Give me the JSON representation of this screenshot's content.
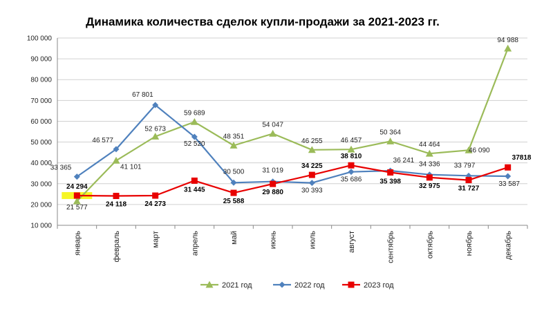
{
  "chart_data": {
    "type": "line",
    "title": "Динамика количества сделок купли-продажи за 2021-2023 гг.",
    "categories": [
      "январь",
      "февраль",
      "март",
      "апрель",
      "май",
      "июнь",
      "июль",
      "август",
      "сентябрь",
      "октябрь",
      "ноябрь",
      "декабрь"
    ],
    "ylim": [
      10000,
      100000
    ],
    "yticks": [
      10000,
      20000,
      30000,
      40000,
      50000,
      60000,
      70000,
      80000,
      90000,
      100000
    ],
    "ytick_labels": [
      "10 000",
      "20 000",
      "30 000",
      "40 000",
      "50 000",
      "60 000",
      "70 000",
      "80 000",
      "90 000",
      "100 000"
    ],
    "grid": true,
    "legend_position": "bottom",
    "series": [
      {
        "name": "2021 год",
        "color": "#9bbb59",
        "marker": "triangle",
        "values": [
          21577,
          41101,
          52673,
          59689,
          48351,
          54047,
          46255,
          46457,
          50364,
          44464,
          46090,
          94988
        ],
        "labels": [
          "21 577",
          "41 101",
          "52 673",
          "59 689",
          "48 351",
          "54 047",
          "46 255",
          "46 457",
          "50 364",
          "44 464",
          "46 090",
          "94 988"
        ]
      },
      {
        "name": "2022 год",
        "color": "#4f81bd",
        "marker": "diamond",
        "values": [
          33365,
          46577,
          67801,
          52520,
          30500,
          31019,
          30393,
          35686,
          36241,
          34336,
          33797,
          33587
        ],
        "labels": [
          "33 365",
          "46 577",
          "67 801",
          "52 520",
          "30 500",
          "31 019",
          "30 393",
          "35 686",
          "36 241",
          "34 336",
          "33 797",
          "33 587"
        ]
      },
      {
        "name": "2023 год",
        "color": "#e80000",
        "marker": "square",
        "values": [
          24294,
          24118,
          24273,
          31445,
          25588,
          29880,
          34225,
          38810,
          35398,
          32975,
          31727,
          37818
        ],
        "labels": [
          "24 294",
          "24 118",
          "24 273",
          "31 445",
          "25 588",
          "29 880",
          "34 225",
          "38 810",
          "35 398",
          "32 975",
          "31 727",
          "37818"
        ]
      }
    ],
    "highlight_color": "#f5f500"
  }
}
